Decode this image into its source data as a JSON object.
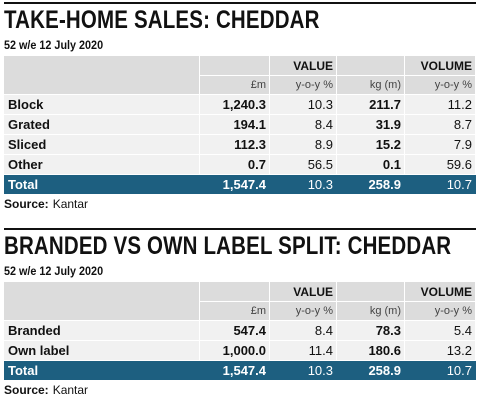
{
  "sections": [
    {
      "title": "TAKE-HOME SALES: CHEDDAR",
      "subtitle": "52 w/e 12 July 2020",
      "groups": [
        "VALUE",
        "VOLUME"
      ],
      "units": [
        "£m",
        "y-o-y %",
        "kg (m)",
        "y-o-y %"
      ],
      "rows": [
        [
          "Block",
          "1,240.3",
          "10.3",
          "211.7",
          "11.2"
        ],
        [
          "Grated",
          "194.1",
          "8.4",
          "31.9",
          "8.7"
        ],
        [
          "Sliced",
          "112.3",
          "8.9",
          "15.2",
          "7.9"
        ],
        [
          "Other",
          "0.7",
          "56.5",
          "0.1",
          "59.6"
        ]
      ],
      "total": [
        "Total",
        "1,547.4",
        "10.3",
        "258.9",
        "10.7"
      ],
      "source_label": "Source:",
      "source": "Kantar"
    },
    {
      "title": "BRANDED VS OWN LABEL SPLIT: CHEDDAR",
      "subtitle": "52 w/e 12 July 2020",
      "groups": [
        "VALUE",
        "VOLUME"
      ],
      "units": [
        "£m",
        "y-o-y %",
        "kg (m)",
        "y-o-y %"
      ],
      "rows": [
        [
          "Branded",
          "547.4",
          "8.4",
          "78.3",
          "5.4"
        ],
        [
          "Own label",
          "1,000.0",
          "11.4",
          "180.6",
          "13.2"
        ]
      ],
      "total": [
        "Total",
        "1,547.4",
        "10.3",
        "258.9",
        "10.7"
      ],
      "source_label": "Source:",
      "source": "Kantar"
    }
  ]
}
